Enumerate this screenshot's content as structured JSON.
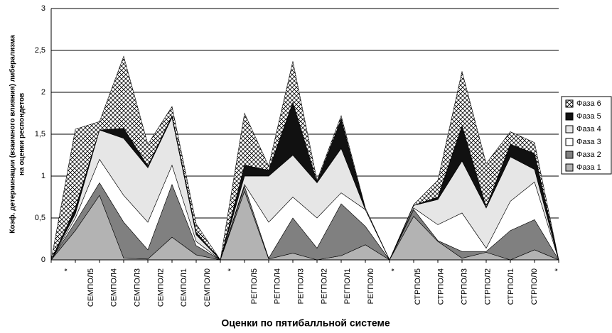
{
  "chart_data": {
    "type": "stacked-area",
    "ylabel": [
      "Коэф. детерминации (взаимного влияния) либерализма",
      "на оценки респондетов"
    ],
    "xlabel": "Оценки по пятибалльной системе",
    "categories": [
      "*",
      "СЕМПОЛ5",
      "СЕМПОЛ4",
      "СЕМПОЛ3",
      "СЕМПОЛ2",
      "СЕМПОЛ1",
      "СЕМПОЛ0",
      "*",
      "РЕГПОЛ5",
      "РЕГПОЛ4",
      "РЕГПОЛ3",
      "РЕГПОЛ2",
      "РЕГПОЛ1",
      "РЕГПОЛ0",
      "*",
      "СТРПОЛ5",
      "СТРПОЛ4",
      "СТРПОЛ3",
      "СТРПОЛ2",
      "СТРПОЛ1",
      "СТРПОЛ0",
      "*"
    ],
    "series": [
      {
        "name": "Фаза 1",
        "color": "#b3b3b3",
        "values": [
          0,
          0.35,
          0.77,
          0.02,
          0.01,
          0.27,
          0.06,
          0,
          0.82,
          0.01,
          0.08,
          0,
          0.05,
          0.18,
          0,
          0.52,
          0.22,
          0.02,
          0.09,
          0,
          0.12,
          0
        ]
      },
      {
        "name": "Фаза 2",
        "color": "#808080",
        "values": [
          0,
          0.1,
          0.15,
          0.43,
          0.11,
          0.63,
          0.11,
          0,
          0.06,
          0.01,
          0.42,
          0.14,
          0.62,
          0.22,
          0,
          0.08,
          0.01,
          0.08,
          0.01,
          0.35,
          0.36,
          0
        ]
      },
      {
        "name": "Фаза 3",
        "color": "#ffffff",
        "values": [
          0,
          0.05,
          0.28,
          0.32,
          0.33,
          0.23,
          0.05,
          0,
          0.02,
          0.43,
          0.25,
          0.36,
          0.13,
          0.2,
          0,
          0.02,
          0.19,
          0.46,
          0.04,
          0.35,
          0.45,
          0
        ]
      },
      {
        "name": "Фаза 4",
        "color": "#e6e6e6",
        "values": [
          0,
          0.05,
          0.35,
          0.68,
          0.65,
          0.57,
          0.08,
          0,
          0.1,
          0.55,
          0.5,
          0.42,
          0.53,
          0,
          0,
          0.03,
          0.3,
          0.62,
          0.48,
          0.53,
          0.15,
          0
        ]
      },
      {
        "name": "Фаза 5",
        "color": "#111111",
        "values": [
          0,
          0.07,
          0,
          0.12,
          0.02,
          0.02,
          0.03,
          0,
          0.13,
          0.07,
          0.63,
          0.01,
          0.35,
          0,
          0,
          0,
          0.03,
          0.42,
          0.01,
          0.15,
          0.19,
          0
        ]
      },
      {
        "name": "Фаза 6",
        "color": "#ffffff",
        "hatch": true,
        "values": [
          0,
          0.94,
          0.1,
          0.86,
          0.26,
          0.11,
          0.1,
          0,
          0.62,
          0.05,
          0.49,
          0.02,
          0.04,
          0.02,
          0,
          0.01,
          0.2,
          0.65,
          0.52,
          0.15,
          0.13,
          0
        ]
      }
    ],
    "ylim": [
      0,
      3
    ],
    "yticks": [
      0,
      {
        "value": 0.5,
        "label": "0,5"
      },
      1,
      {
        "value": 1.5,
        "label": "1,5"
      },
      2,
      {
        "value": 2.5,
        "label": "2,5"
      },
      3
    ],
    "grid": true,
    "legend": "right"
  }
}
